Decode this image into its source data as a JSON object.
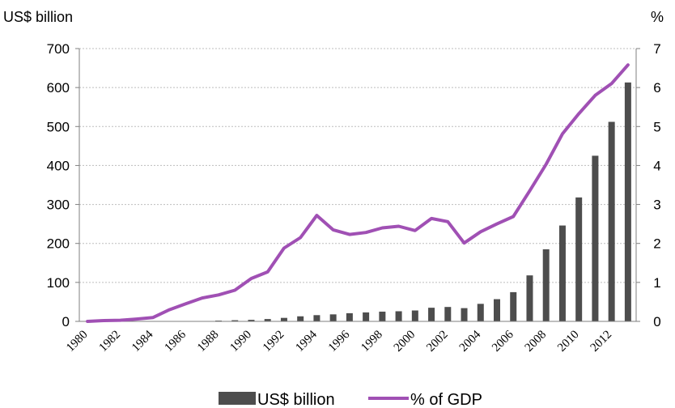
{
  "chart_data": {
    "type": "bar+line",
    "x": [
      1980,
      1981,
      1982,
      1983,
      1984,
      1985,
      1986,
      1987,
      1988,
      1989,
      1990,
      1991,
      1992,
      1993,
      1994,
      1995,
      1996,
      1997,
      1998,
      1999,
      2000,
      2001,
      2002,
      2003,
      2004,
      2005,
      2006,
      2007,
      2008,
      2009,
      2010,
      2011,
      2012,
      2013
    ],
    "x_tick_labels": [
      "1980",
      "1982",
      "1984",
      "1986",
      "1988",
      "1990",
      "1992",
      "1994",
      "1996",
      "1998",
      "2000",
      "2002",
      "2004",
      "2006",
      "2008",
      "2010",
      "2012"
    ],
    "left_axis": {
      "label": "US$ billion",
      "ylim": [
        0,
        700
      ],
      "ticks": [
        0,
        100,
        200,
        300,
        400,
        500,
        600,
        700
      ]
    },
    "right_axis": {
      "label": "%",
      "ylim": [
        0,
        7
      ],
      "ticks": [
        0,
        1,
        2,
        3,
        4,
        5,
        6,
        7
      ]
    },
    "series": [
      {
        "name": "US$ billion",
        "type": "bar",
        "axis": "left",
        "color": "#4d4d4d",
        "values": [
          0,
          0,
          0,
          0,
          0,
          0,
          1,
          1,
          2,
          3,
          4,
          6,
          9,
          13,
          16,
          18,
          21,
          23,
          25,
          26,
          28,
          35,
          37,
          34,
          45,
          57,
          75,
          118,
          185,
          246,
          318,
          425,
          512,
          613
        ]
      },
      {
        "name": "% of GDP",
        "type": "line",
        "axis": "right",
        "color": "#a050b4",
        "values": [
          0,
          0.02,
          0.03,
          0.06,
          0.1,
          0.3,
          0.45,
          0.6,
          0.68,
          0.8,
          1.1,
          1.27,
          1.88,
          2.15,
          2.72,
          2.35,
          2.23,
          2.28,
          2.4,
          2.44,
          2.33,
          2.64,
          2.56,
          2.01,
          2.3,
          2.5,
          2.69,
          3.35,
          4.03,
          4.81,
          5.33,
          5.8,
          6.1,
          6.58
        ]
      }
    ],
    "grid": true,
    "legend_position": "bottom-center"
  }
}
